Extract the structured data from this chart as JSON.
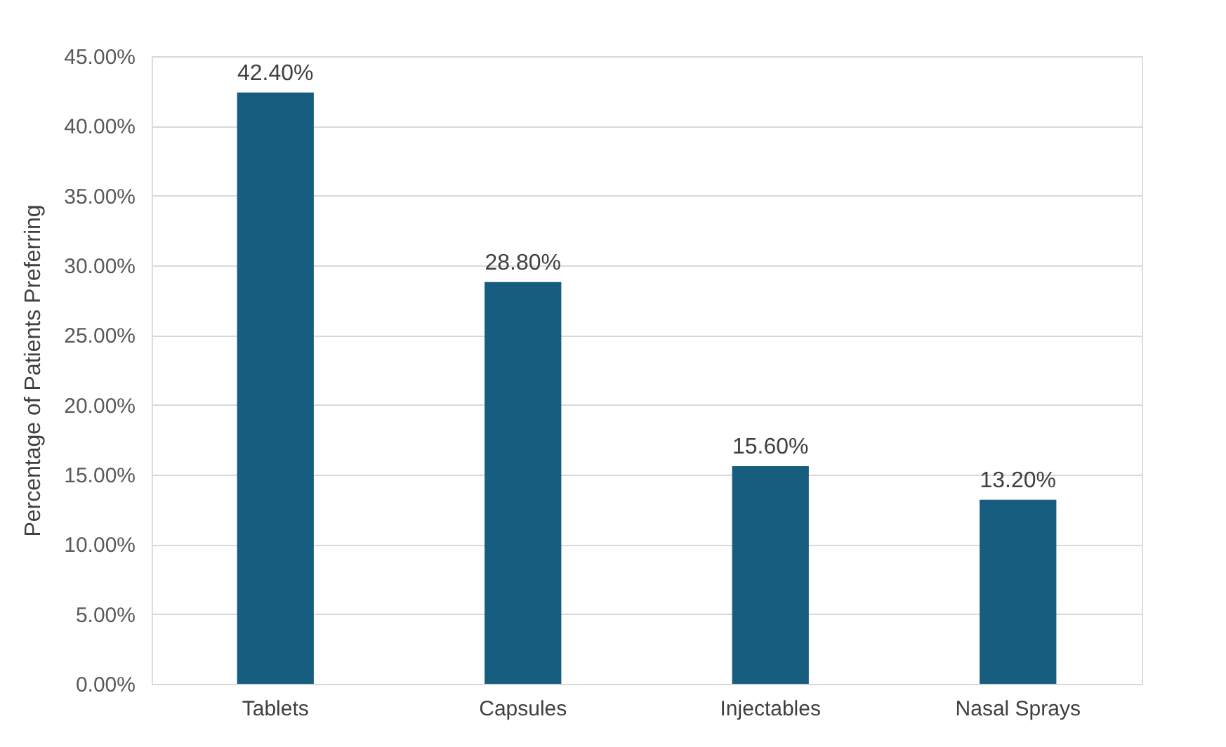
{
  "chart_data": {
    "type": "bar",
    "ylabel": "Percentage of Patients Preferring",
    "categories": [
      "Tablets",
      "Capsules",
      "Injectables",
      "Nasal Sprays"
    ],
    "values": [
      42.4,
      28.8,
      15.6,
      13.2
    ],
    "value_labels": [
      "42.40%",
      "28.80%",
      "15.60%",
      "13.20%"
    ],
    "color": "#175d7f",
    "ylim": [
      0,
      45
    ],
    "yticks": [
      {
        "value": 0,
        "label": "0.00%"
      },
      {
        "value": 5,
        "label": "5.00%"
      },
      {
        "value": 10,
        "label": "10.00%"
      },
      {
        "value": 15,
        "label": "15.00%"
      },
      {
        "value": 20,
        "label": "20.00%"
      },
      {
        "value": 25,
        "label": "25.00%"
      },
      {
        "value": 30,
        "label": "30.00%"
      },
      {
        "value": 35,
        "label": "35.00%"
      },
      {
        "value": 40,
        "label": "40.00%"
      },
      {
        "value": 45,
        "label": "45.00%"
      }
    ],
    "grid": "y"
  }
}
